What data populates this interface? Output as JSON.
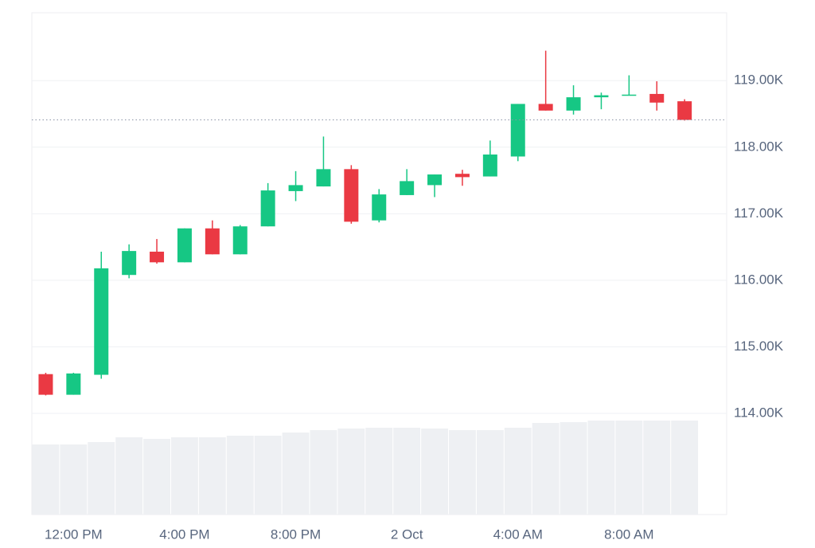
{
  "chart_data": {
    "type": "candlestick",
    "categories": [
      null,
      "12:00 PM",
      null,
      null,
      null,
      "4:00 PM",
      null,
      null,
      null,
      "8:00 PM",
      null,
      null,
      null,
      "2 Oct",
      null,
      null,
      null,
      "4:00 AM",
      null,
      null,
      null,
      "8:00 AM",
      null,
      null
    ],
    "open": [
      114590,
      114280,
      114580,
      116080,
      116430,
      116270,
      116780,
      116390,
      116810,
      117340,
      117410,
      117670,
      116900,
      117280,
      117430,
      117600,
      117560,
      117860,
      118650,
      118550,
      118750,
      118780,
      118800,
      118690
    ],
    "high": [
      114610,
      114610,
      116430,
      116540,
      116620,
      116780,
      116900,
      116830,
      117460,
      117640,
      118160,
      117730,
      117370,
      117670,
      117590,
      117660,
      118100,
      118650,
      119450,
      118930,
      118820,
      119080,
      118990,
      118720
    ],
    "low": [
      114270,
      114280,
      114520,
      116030,
      116250,
      116270,
      116390,
      116390,
      116810,
      117190,
      117410,
      116850,
      116870,
      117280,
      117250,
      117420,
      117560,
      117790,
      118550,
      118490,
      118570,
      118780,
      118550,
      118400
    ],
    "close": [
      114280,
      114600,
      116180,
      116440,
      116270,
      116780,
      116390,
      116810,
      117350,
      117430,
      117670,
      116880,
      117290,
      117490,
      117590,
      117550,
      117890,
      118650,
      118550,
      118750,
      118780,
      118790,
      118670,
      118410
    ],
    "volume": [
      88,
      88,
      91,
      97,
      95,
      97,
      97,
      99,
      99,
      103,
      106,
      108,
      109,
      109,
      108,
      106,
      106,
      109,
      115,
      116,
      118,
      118,
      118,
      118
    ],
    "up_color": "#16c784",
    "down_color": "#ea3943",
    "volume_color": "#eef0f3",
    "ylim": [
      112480,
      120020
    ],
    "yticks": [
      {
        "value": 114000,
        "label": "114.00K"
      },
      {
        "value": 115000,
        "label": "115.00K"
      },
      {
        "value": 116000,
        "label": "116.00K"
      },
      {
        "value": 117000,
        "label": "117.00K"
      },
      {
        "value": 118000,
        "label": "118.00K"
      },
      {
        "value": 119000,
        "label": "119.00K"
      }
    ],
    "grid": true
  }
}
